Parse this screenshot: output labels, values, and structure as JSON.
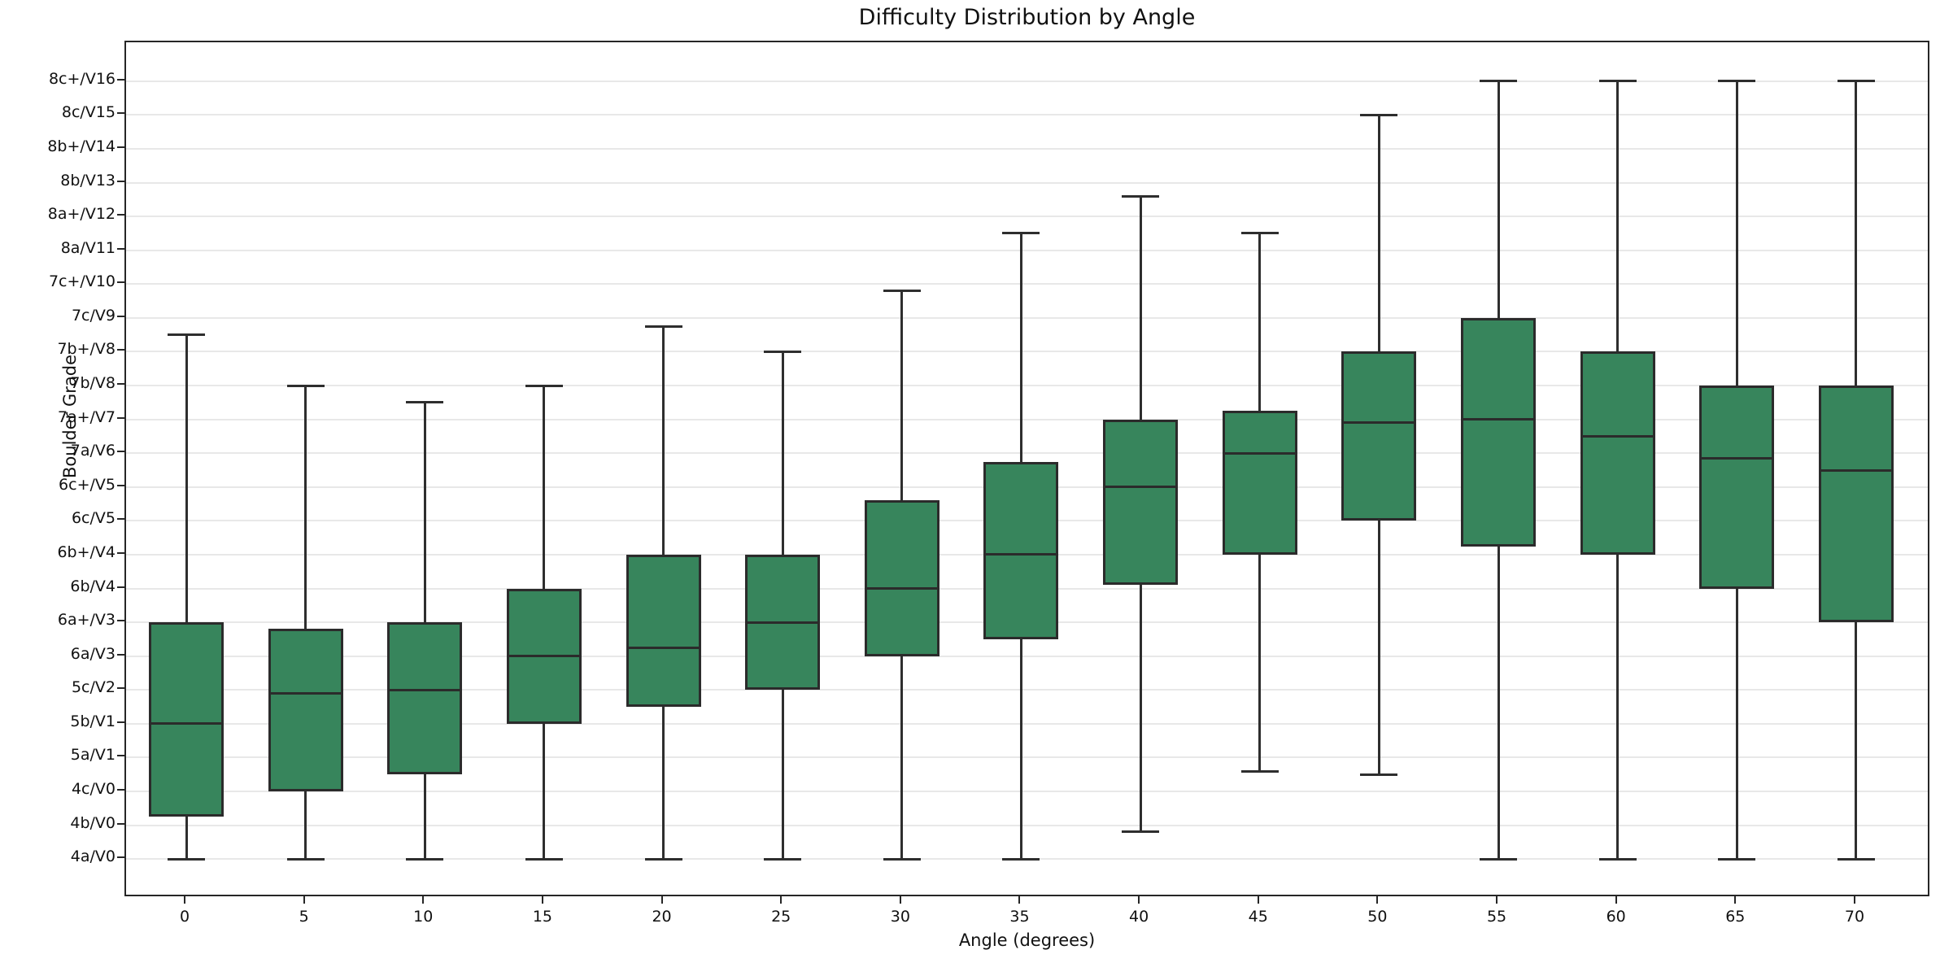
{
  "title": "Difficulty Distribution by Angle",
  "chart_data": {
    "type": "box",
    "title": "Difficulty Distribution by Angle",
    "xlabel": "Angle (degrees)",
    "ylabel": "Boulder Grade",
    "categories": [
      "0",
      "5",
      "10",
      "15",
      "20",
      "25",
      "30",
      "35",
      "40",
      "45",
      "50",
      "55",
      "60",
      "65",
      "70"
    ],
    "y_tick_labels": [
      "4a/V0",
      "4b/V0",
      "4c/V0",
      "5a/V1",
      "5b/V1",
      "5c/V2",
      "6a/V3",
      "6a+/V3",
      "6b/V4",
      "6b+/V4",
      "6c/V5",
      "6c+/V5",
      "7a/V6",
      "7a+/V7",
      "7b/V8",
      "7b+/V8",
      "7c/V9",
      "7c+/V10",
      "8a/V11",
      "8a+/V12",
      "8b/V13",
      "8b+/V14",
      "8c/V15",
      "8c+/V16"
    ],
    "y_scale_note": "box values are indices into y_tick_labels (0 = 4a/V0, 23 = 8c+/V16)",
    "ylim": [
      -1.15,
      24.15
    ],
    "grid": "horizontal",
    "legend": "none",
    "series": [
      {
        "name": "difficulty-by-angle",
        "boxes": [
          {
            "angle": "0",
            "whisker_low": 0,
            "q1": 1.25,
            "median": 4,
            "q3": 7,
            "whisker_high": 15.5
          },
          {
            "angle": "5",
            "whisker_low": 0,
            "q1": 2,
            "median": 4.9,
            "q3": 6.8,
            "whisker_high": 14
          },
          {
            "angle": "10",
            "whisker_low": 0,
            "q1": 2.5,
            "median": 5,
            "q3": 7,
            "whisker_high": 13.5
          },
          {
            "angle": "15",
            "whisker_low": 0,
            "q1": 4,
            "median": 6,
            "q3": 8,
            "whisker_high": 14
          },
          {
            "angle": "20",
            "whisker_low": 0,
            "q1": 4.5,
            "median": 6.25,
            "q3": 9,
            "whisker_high": 15.75
          },
          {
            "angle": "25",
            "whisker_low": 0,
            "q1": 5,
            "median": 7,
            "q3": 9,
            "whisker_high": 15
          },
          {
            "angle": "30",
            "whisker_low": 0,
            "q1": 6,
            "median": 8,
            "q3": 10.6,
            "whisker_high": 16.8
          },
          {
            "angle": "35",
            "whisker_low": 0,
            "q1": 6.5,
            "median": 9,
            "q3": 11.75,
            "whisker_high": 18.5
          },
          {
            "angle": "40",
            "whisker_low": 0.8,
            "q1": 8.1,
            "median": 11,
            "q3": 13,
            "whisker_high": 19.6
          },
          {
            "angle": "45",
            "whisker_low": 2.6,
            "q1": 9,
            "median": 12,
            "q3": 13.25,
            "whisker_high": 18.5
          },
          {
            "angle": "50",
            "whisker_low": 2.5,
            "q1": 10,
            "median": 12.9,
            "q3": 15,
            "whisker_high": 22
          },
          {
            "angle": "55",
            "whisker_low": 0,
            "q1": 9.25,
            "median": 13,
            "q3": 16,
            "whisker_high": 23
          },
          {
            "angle": "60",
            "whisker_low": 0,
            "q1": 9,
            "median": 12.5,
            "q3": 15,
            "whisker_high": 23
          },
          {
            "angle": "65",
            "whisker_low": 0,
            "q1": 8,
            "median": 11.85,
            "q3": 14,
            "whisker_high": 23
          },
          {
            "angle": "70",
            "whisker_low": 0,
            "q1": 7,
            "median": 11.5,
            "q3": 14,
            "whisker_high": 23
          }
        ]
      }
    ],
    "colors": {
      "box_fill": "#37855c",
      "box_edge": "#2b2b2b",
      "whisker": "#2e2e2e",
      "median": "#2b2b2b",
      "grid": "#e8e8e8",
      "spine": "#262626",
      "text": "#111111",
      "background": "#ffffff"
    }
  }
}
